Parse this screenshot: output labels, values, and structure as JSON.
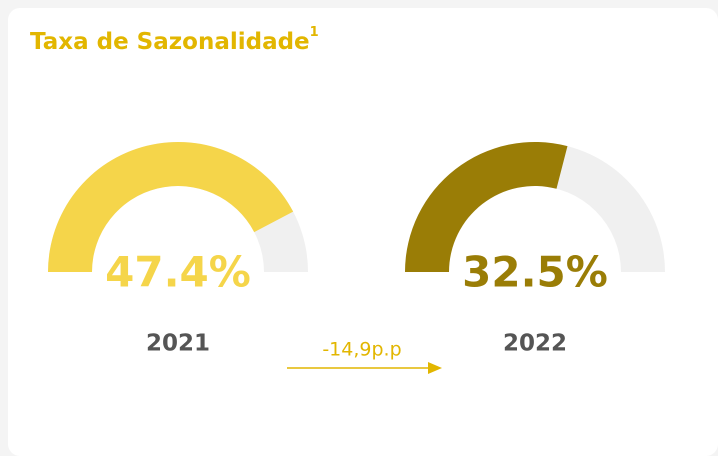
{
  "title": "Taxa de Sazonalidade",
  "title_note": "1",
  "annotation": "-14,9p.p",
  "chart_data": [
    {
      "type": "gauge",
      "category": "2021",
      "values": [
        47.4
      ],
      "value_labels": [
        "47.4%"
      ],
      "color": "#f5d54a",
      "track_color": "#f0f0f0",
      "ylim": [
        0,
        56
      ]
    },
    {
      "type": "gauge",
      "category": "2022",
      "values": [
        32.5
      ],
      "value_labels": [
        "32.5%"
      ],
      "color": "#9a7d06",
      "track_color": "#f0f0f0",
      "ylim": [
        0,
        56
      ]
    }
  ]
}
